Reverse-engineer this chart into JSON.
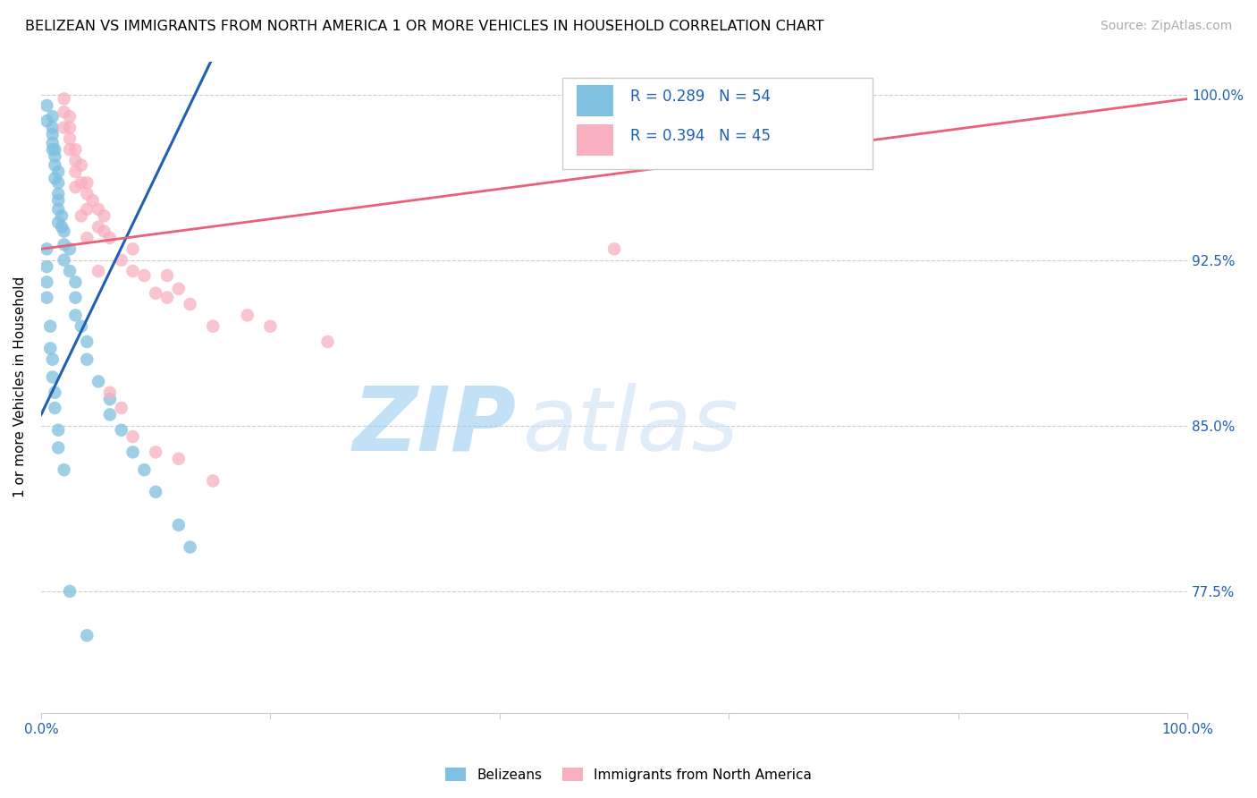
{
  "title": "BELIZEAN VS IMMIGRANTS FROM NORTH AMERICA 1 OR MORE VEHICLES IN HOUSEHOLD CORRELATION CHART",
  "source": "Source: ZipAtlas.com",
  "ylabel": "1 or more Vehicles in Household",
  "xlim": [
    0.0,
    1.0
  ],
  "ylim": [
    0.72,
    1.015
  ],
  "x_ticks": [
    0.0,
    0.2,
    0.4,
    0.6,
    0.8,
    1.0
  ],
  "x_tick_labels": [
    "0.0%",
    "",
    "",
    "",
    "",
    "100.0%"
  ],
  "y_ticks": [
    0.775,
    0.85,
    0.925,
    1.0
  ],
  "y_tick_labels": [
    "77.5%",
    "85.0%",
    "92.5%",
    "100.0%"
  ],
  "legend_labels": [
    "Belizeans",
    "Immigrants from North America"
  ],
  "blue_color": "#7fbfdf",
  "pink_color": "#f8afc0",
  "blue_line_color": "#2060b0",
  "pink_line_color": "#e8607a",
  "R_blue": 0.289,
  "N_blue": 54,
  "R_pink": 0.394,
  "N_pink": 45,
  "legend_text_color": "#2060b0",
  "watermark_zip": "ZIP",
  "watermark_atlas": "atlas",
  "blue_x": [
    0.005,
    0.005,
    0.01,
    0.01,
    0.01,
    0.01,
    0.01,
    0.012,
    0.012,
    0.012,
    0.012,
    0.015,
    0.015,
    0.015,
    0.015,
    0.015,
    0.015,
    0.018,
    0.018,
    0.02,
    0.02,
    0.02,
    0.025,
    0.025,
    0.03,
    0.03,
    0.03,
    0.035,
    0.04,
    0.04,
    0.05,
    0.06,
    0.06,
    0.07,
    0.08,
    0.09,
    0.1,
    0.12,
    0.13,
    0.005,
    0.005,
    0.005,
    0.005,
    0.008,
    0.008,
    0.01,
    0.01,
    0.012,
    0.012,
    0.015,
    0.015,
    0.02,
    0.025,
    0.04
  ],
  "blue_y": [
    0.995,
    0.988,
    0.99,
    0.985,
    0.982,
    0.978,
    0.975,
    0.975,
    0.972,
    0.968,
    0.962,
    0.965,
    0.96,
    0.955,
    0.952,
    0.948,
    0.942,
    0.945,
    0.94,
    0.938,
    0.932,
    0.925,
    0.93,
    0.92,
    0.915,
    0.908,
    0.9,
    0.895,
    0.888,
    0.88,
    0.87,
    0.862,
    0.855,
    0.848,
    0.838,
    0.83,
    0.82,
    0.805,
    0.795,
    0.93,
    0.922,
    0.915,
    0.908,
    0.895,
    0.885,
    0.88,
    0.872,
    0.865,
    0.858,
    0.848,
    0.84,
    0.83,
    0.775,
    0.755
  ],
  "pink_x": [
    0.02,
    0.02,
    0.02,
    0.025,
    0.025,
    0.025,
    0.025,
    0.03,
    0.03,
    0.03,
    0.035,
    0.035,
    0.04,
    0.04,
    0.04,
    0.045,
    0.05,
    0.05,
    0.055,
    0.055,
    0.06,
    0.07,
    0.08,
    0.08,
    0.09,
    0.1,
    0.11,
    0.11,
    0.12,
    0.13,
    0.15,
    0.18,
    0.2,
    0.25,
    0.03,
    0.035,
    0.04,
    0.05,
    0.06,
    0.07,
    0.08,
    0.1,
    0.12,
    0.15,
    0.5
  ],
  "pink_y": [
    0.998,
    0.992,
    0.985,
    0.99,
    0.985,
    0.98,
    0.975,
    0.975,
    0.97,
    0.965,
    0.968,
    0.96,
    0.96,
    0.955,
    0.948,
    0.952,
    0.948,
    0.94,
    0.945,
    0.938,
    0.935,
    0.925,
    0.93,
    0.92,
    0.918,
    0.91,
    0.918,
    0.908,
    0.912,
    0.905,
    0.895,
    0.9,
    0.895,
    0.888,
    0.958,
    0.945,
    0.935,
    0.92,
    0.865,
    0.858,
    0.845,
    0.838,
    0.835,
    0.825,
    0.93
  ]
}
